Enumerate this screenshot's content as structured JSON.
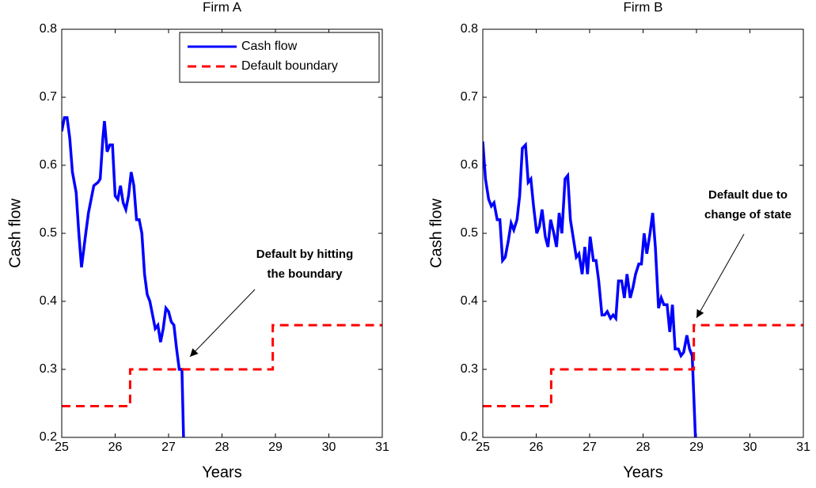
{
  "chart_data": [
    {
      "type": "line",
      "title": "Firm A",
      "xlabel": "Years",
      "ylabel": "Cash flow",
      "xlim": [
        25,
        31
      ],
      "xticks": [
        25,
        26,
        27,
        28,
        29,
        30,
        31
      ],
      "ylim": [
        0.2,
        0.8
      ],
      "yticks": [
        0.2,
        0.3,
        0.4,
        0.5,
        0.6,
        0.7,
        0.8
      ],
      "legend": "upper right",
      "annotation": [
        "Default by hitting",
        "the boundary"
      ],
      "series": [
        {
          "name": "Cash flow",
          "color": "#0000ff",
          "style": "solid",
          "x": [
            25.0,
            25.05,
            25.1,
            25.15,
            25.2,
            25.27,
            25.32,
            25.37,
            25.45,
            25.5,
            25.55,
            25.6,
            25.68,
            25.72,
            25.77,
            25.8,
            25.85,
            25.9,
            25.95,
            26.0,
            26.05,
            26.1,
            26.15,
            26.2,
            26.25,
            26.3,
            26.35,
            26.4,
            26.45,
            26.5,
            26.55,
            26.6,
            26.65,
            26.7,
            26.75,
            26.8,
            26.85,
            26.9,
            26.95,
            27.0,
            27.05,
            27.1,
            27.15,
            27.2,
            27.25,
            27.28
          ],
          "values": [
            0.65,
            0.67,
            0.67,
            0.64,
            0.59,
            0.56,
            0.5,
            0.45,
            0.5,
            0.53,
            0.55,
            0.57,
            0.575,
            0.58,
            0.64,
            0.665,
            0.62,
            0.63,
            0.63,
            0.555,
            0.55,
            0.57,
            0.545,
            0.535,
            0.555,
            0.59,
            0.57,
            0.52,
            0.52,
            0.5,
            0.44,
            0.41,
            0.4,
            0.38,
            0.36,
            0.365,
            0.34,
            0.36,
            0.39,
            0.385,
            0.37,
            0.365,
            0.33,
            0.3,
            0.3,
            0.2
          ]
        },
        {
          "name": "Default boundary",
          "color": "#ff0000",
          "style": "dashed",
          "x": [
            25,
            26.28,
            26.28,
            28.95,
            28.95,
            31
          ],
          "values": [
            0.246,
            0.246,
            0.3,
            0.3,
            0.365,
            0.365
          ]
        }
      ]
    },
    {
      "type": "line",
      "title": "Firm B",
      "xlabel": "Years",
      "ylabel": "Cash flow",
      "xlim": [
        25,
        31
      ],
      "xticks": [
        25,
        26,
        27,
        28,
        29,
        30,
        31
      ],
      "ylim": [
        0.2,
        0.8
      ],
      "yticks": [
        0.2,
        0.3,
        0.4,
        0.5,
        0.6,
        0.7,
        0.8
      ],
      "annotation": [
        "Default due to",
        "change of state"
      ],
      "series": [
        {
          "name": "Cash flow",
          "color": "#0000ff",
          "style": "solid",
          "x": [
            25,
            25.05,
            25.11,
            25.16,
            25.21,
            25.27,
            25.32,
            25.37,
            25.42,
            25.48,
            25.53,
            25.58,
            25.64,
            25.69,
            25.74,
            25.8,
            25.85,
            25.9,
            25.95,
            26.01,
            26.06,
            26.11,
            26.17,
            26.22,
            26.27,
            26.33,
            26.38,
            26.43,
            26.48,
            26.54,
            26.59,
            26.64,
            26.7,
            26.75,
            26.8,
            26.86,
            26.91,
            26.96,
            27.01,
            27.07,
            27.12,
            27.17,
            27.23,
            27.28,
            27.33,
            27.39,
            27.44,
            27.49,
            27.54,
            27.6,
            27.65,
            27.7,
            27.76,
            27.81,
            27.86,
            27.92,
            27.97,
            28.02,
            28.07,
            28.13,
            28.18,
            28.23,
            28.29,
            28.34,
            28.39,
            28.45,
            28.5,
            28.55,
            28.6,
            28.66,
            28.71,
            28.76,
            28.82,
            28.87,
            28.92,
            28.98
          ],
          "values": [
            0.635,
            0.58,
            0.55,
            0.54,
            0.545,
            0.52,
            0.52,
            0.46,
            0.465,
            0.49,
            0.515,
            0.505,
            0.52,
            0.555,
            0.625,
            0.63,
            0.575,
            0.58,
            0.54,
            0.5,
            0.51,
            0.535,
            0.495,
            0.48,
            0.52,
            0.5,
            0.48,
            0.53,
            0.5,
            0.58,
            0.585,
            0.52,
            0.49,
            0.465,
            0.47,
            0.44,
            0.48,
            0.44,
            0.495,
            0.46,
            0.46,
            0.43,
            0.38,
            0.38,
            0.385,
            0.375,
            0.38,
            0.375,
            0.43,
            0.43,
            0.405,
            0.44,
            0.405,
            0.42,
            0.44,
            0.455,
            0.455,
            0.5,
            0.47,
            0.5,
            0.53,
            0.48,
            0.39,
            0.405,
            0.395,
            0.395,
            0.355,
            0.395,
            0.33,
            0.33,
            0.32,
            0.325,
            0.35,
            0.33,
            0.32,
            0.2
          ]
        },
        {
          "name": "Default boundary",
          "color": "#ff0000",
          "style": "dashed",
          "x": [
            25,
            26.28,
            26.28,
            28.95,
            28.95,
            31
          ],
          "values": [
            0.246,
            0.246,
            0.3,
            0.3,
            0.365,
            0.365
          ]
        }
      ]
    }
  ]
}
